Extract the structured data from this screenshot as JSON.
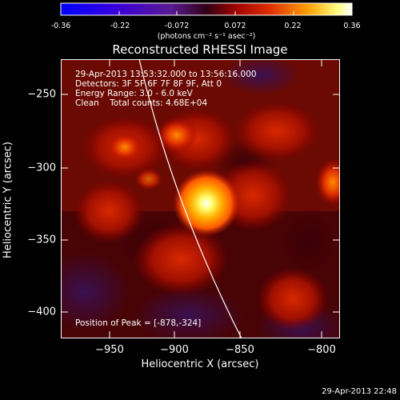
{
  "colorbar": {
    "ticks": [
      "-0.36",
      "-0.22",
      "-0.072",
      "0.072",
      "0.22",
      "0.36"
    ],
    "units": "(photons cm⁻² s⁻¹ asec⁻²)"
  },
  "title": "Reconstructed RHESSI Image",
  "info": {
    "time_range": "29-Apr-2013 13:53:32.000 to 13:56:16.000",
    "detectors": "Detectors: 3F 5F 6F 7F 8F 9F, Att 0",
    "energy": "Energy Range: 3.0 - 6.0 keV",
    "clean": "Clean    Total counts: 4.68E+04",
    "peak": "Position of Peak = [-878,-324]"
  },
  "axes": {
    "xlabel": "Heliocentric X (arcsec)",
    "ylabel": "Heliocentric Y (arcsec)",
    "xticks": [
      "−950",
      "−900",
      "−850",
      "−800"
    ],
    "yticks": [
      "−250",
      "−300",
      "−350",
      "−400"
    ]
  },
  "timestamp": "29-Apr-2013 22:48",
  "colors": {
    "background": "#000000",
    "text": "#ffffff",
    "limb_line": "#ffffff"
  }
}
